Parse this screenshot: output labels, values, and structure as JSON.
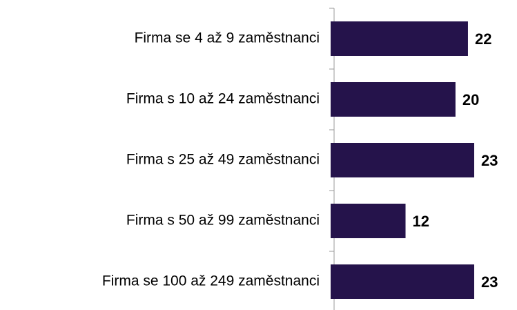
{
  "chart_data": {
    "type": "bar",
    "orientation": "horizontal",
    "categories": [
      "Firma se 4 až 9 zaměstnanci",
      "Firma s 10 až 24 zaměstnanci",
      "Firma s 25 až 49 zaměstnanci",
      "Firma s 50 až 99 zaměstnanci",
      "Firma se 100 až 249 zaměstnanci"
    ],
    "values": [
      22,
      20,
      23,
      12,
      23
    ],
    "color": "#25134b"
  }
}
